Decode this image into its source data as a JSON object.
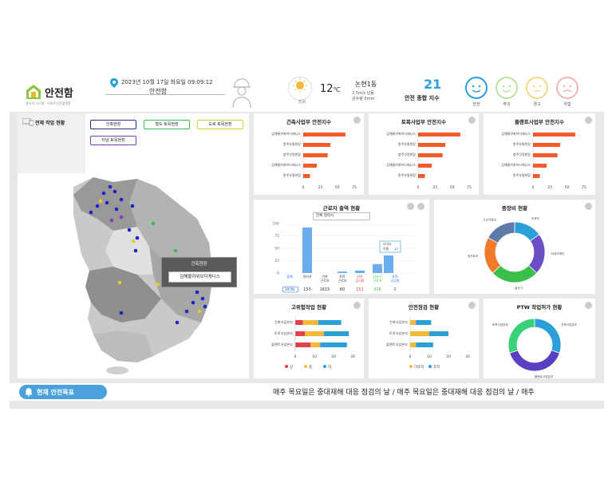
{
  "header": {
    "logo": "안전함",
    "logo_sub": "관리자 시스템 · 스마트안전플랫폼",
    "datetime": "2023년 10월 17일 화요일 09:09:12",
    "site": "안전함",
    "weather": {
      "condition": "맑음",
      "temp": "12",
      "temp_unit": "℃",
      "location": "논현1동",
      "wind": "2.5m/s 남동",
      "rain": "강수량 0mm"
    },
    "safety_index": {
      "value": "21",
      "label": "안전 종합 지수"
    },
    "faces": [
      {
        "label": "안전",
        "color": "#2a9fd8"
      },
      {
        "label": "주의",
        "color": "#b9e39a"
      },
      {
        "label": "경고",
        "color": "#f5d98a"
      },
      {
        "label": "위험",
        "color": "#f1b5b5"
      }
    ]
  },
  "site_status": {
    "title": "전체 작업 현황",
    "chips": [
      {
        "label": "건축현장",
        "color": "#2b2f8f"
      },
      {
        "label": "철도 토목현장",
        "color": "#3bbf4a"
      },
      {
        "label": "도로 토목현장",
        "color": "#e6cc2a"
      },
      {
        "label": "터널 토목현장",
        "color": "#7a3fb5"
      }
    ],
    "tooltip": {
      "title": "건축현장",
      "name": "김해율하위브더캐니스"
    }
  },
  "panels": {
    "arch": {
      "title": "건축사업부 안전지수",
      "labels": [
        "김해율하위브더캐니스",
        "원주유통현장",
        "청주안정현장",
        "김해율하위브더캐니스",
        "원주유통현장"
      ],
      "values": [
        62,
        40,
        36,
        20,
        10
      ],
      "ticks": [
        "0",
        "25",
        "50",
        "75"
      ]
    },
    "civil": {
      "title": "토목사업부 안전지수",
      "labels": [
        "김해율하위브더캐니스",
        "원주유통현장",
        "청주안정현장",
        "김해율하위브더캐니스",
        "원주유통현장"
      ],
      "values": [
        62,
        40,
        36,
        20,
        10
      ],
      "ticks": [
        "0",
        "25",
        "50",
        "75"
      ]
    },
    "plant": {
      "title": "플랜트사업부 안전지수",
      "labels": [
        "김해율하위브더캐니스",
        "원주유통현장",
        "청주안정현장",
        "김해율하위브더캐니스",
        "원주유통현장"
      ],
      "values": [
        62,
        40,
        36,
        20,
        10
      ],
      "ticks": [
        "0",
        "25",
        "50",
        "75"
      ]
    },
    "attendance": {
      "title": "근로자 출역 현황",
      "select": "전체 협력사",
      "tooltip": {
        "title": "오이시",
        "label": "이름",
        "value": "17"
      },
      "categories": [
        "합계",
        "관리자",
        "건축 근로자",
        "토목 근로자",
        "안전 감시원",
        "신호수 근로자",
        "토목 공무원"
      ],
      "values": [
        "1836",
        "153",
        "1615",
        "60",
        "151",
        "316",
        "0"
      ],
      "cat_colors": [
        "#2a6fd8",
        "#333",
        "#333",
        "#333",
        "#d83a3a",
        "#3bbf4a",
        "#2a6fd8"
      ],
      "yticks": [
        "0",
        "25",
        "50",
        "75",
        "100"
      ]
    },
    "equipment": {
      "title": "중장비 현황",
      "segments": [
        {
          "label": "지게차",
          "value": 15,
          "color": "#2a9fd8"
        },
        {
          "label": "타워크레인",
          "value": 22,
          "color": "#6b4ec5"
        },
        {
          "label": "굴삭기",
          "value": 26,
          "color": "#3bbf4a"
        },
        {
          "label": "덤프트럭",
          "value": 20,
          "color": "#f07a2a"
        },
        {
          "label": "고소작업대",
          "value": 17,
          "color": "#5d7aa8"
        }
      ]
    },
    "high_work": {
      "title": "고위험작업 현황",
      "labels": [
        "건축사업본부",
        "토목사업본부",
        "플랜트사업본부"
      ],
      "ticks": [
        "0",
        "10",
        "20",
        "30"
      ],
      "series": [
        {
          "name": "상",
          "color": "#e0424a",
          "values": [
            4,
            5,
            8
          ]
        },
        {
          "name": "중",
          "color": "#f6b739",
          "values": [
            8,
            10,
            5
          ]
        },
        {
          "name": "하",
          "color": "#2a9fd8",
          "values": [
            12,
            13,
            14
          ]
        }
      ]
    },
    "inspection": {
      "title": "안전점검 현황",
      "labels": [
        "건축사업본부",
        "토목사업본부",
        "플랜트사업본부"
      ],
      "ticks": [
        "0",
        "10",
        "20",
        "30"
      ],
      "series": [
        {
          "name": "미조치",
          "color": "#f6b739",
          "values": [
            3,
            10,
            3
          ]
        },
        {
          "name": "조치",
          "color": "#2a9fd8",
          "values": [
            8,
            10,
            9
          ]
        }
      ]
    },
    "ptw": {
      "title": "PTW 작업허가 현황",
      "segments": [
        {
          "label": "건축사업본부",
          "value": 30,
          "color": "#2a9fd8"
        },
        {
          "label": "플랜트사업본부",
          "value": 40,
          "color": "#5a3fc0"
        },
        {
          "label": "토목사업본부",
          "value": 30,
          "color": "#3bd07a"
        }
      ]
    }
  },
  "ticker": {
    "goal_label": "현재 안전목표",
    "message": "매주 목요일은 중대재해 대응 점검의 날 / 매주 목요일은 중대재해 대응 점검의 날 / 매주"
  }
}
